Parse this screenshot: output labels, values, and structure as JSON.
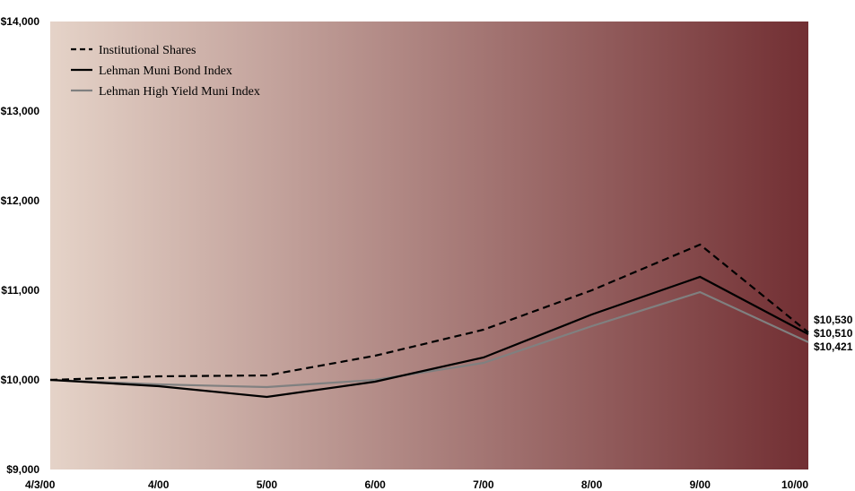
{
  "chart_data": {
    "type": "line",
    "title": "",
    "xlabel": "",
    "ylabel": "",
    "categories": [
      "4/3/00",
      "4/00",
      "5/00",
      "6/00",
      "7/00",
      "8/00",
      "9/00",
      "10/00"
    ],
    "ylim": [
      9000,
      14000
    ],
    "yticks": [
      9000,
      10000,
      11000,
      12000,
      13000,
      14000
    ],
    "ytick_labels": [
      "$9,000",
      "$10,000",
      "$11,000",
      "$12,000",
      "$13,000",
      "$14,000"
    ],
    "grid": false,
    "legend_position": "top-left",
    "series": [
      {
        "name": "Institutional Shares",
        "style": "dashed",
        "color": "#000000",
        "values": [
          10000,
          10040,
          10050,
          10270,
          10560,
          11000,
          11510,
          10530
        ]
      },
      {
        "name": "Lehman Muni Bond Index",
        "style": "solid",
        "color": "#000000",
        "values": [
          10000,
          9930,
          9810,
          9980,
          10250,
          10730,
          11150,
          10510
        ]
      },
      {
        "name": "Lehman High Yield Muni Index",
        "style": "solid",
        "color": "#808080",
        "values": [
          10000,
          9950,
          9920,
          10000,
          10190,
          10600,
          10980,
          10421
        ]
      }
    ],
    "end_labels": [
      "$10,530",
      "$10,510",
      "$10,421"
    ],
    "background": {
      "gradient_start": "#e5d3c8",
      "gradient_end": "#722f33"
    }
  }
}
